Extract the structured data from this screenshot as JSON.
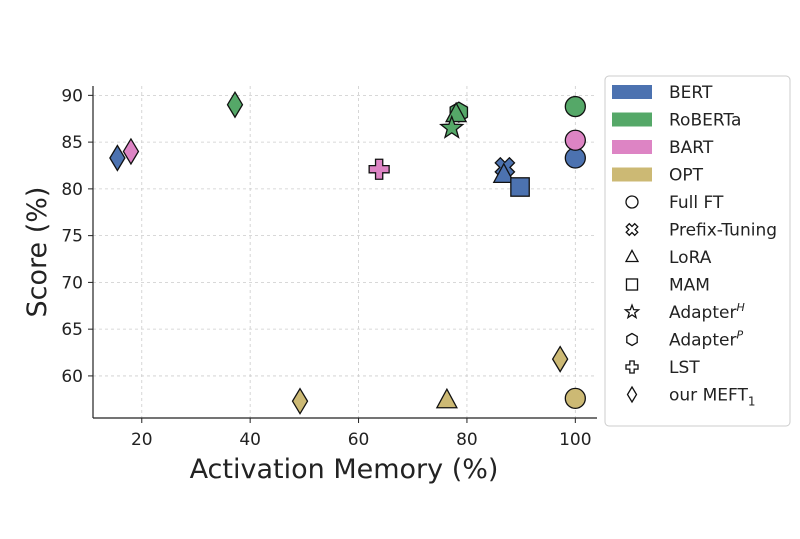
{
  "chart_data": {
    "type": "scatter",
    "xlabel": "Activation Memory (%)",
    "ylabel": "Score (%)",
    "xlim": [
      11,
      104
    ],
    "ylim": [
      55.5,
      91
    ],
    "xticks": [
      20,
      40,
      60,
      80,
      100
    ],
    "yticks": [
      60,
      65,
      70,
      75,
      80,
      85,
      90
    ],
    "grid": true,
    "legend_position": "right",
    "colors": {
      "BERT": "#4c72b0",
      "RoBERTa": "#55a868",
      "BART": "#dd84c4",
      "OPT": "#ccb974"
    },
    "model_legend": [
      "BERT",
      "RoBERTa",
      "BART",
      "OPT"
    ],
    "method_legend": [
      {
        "marker": "circle",
        "label": "Full FT"
      },
      {
        "marker": "x",
        "label": "Prefix-Tuning"
      },
      {
        "marker": "triangle",
        "label": "LoRA"
      },
      {
        "marker": "square",
        "label": "MAM"
      },
      {
        "marker": "star",
        "label": "Adapter",
        "sup": "H"
      },
      {
        "marker": "hexagon",
        "label": "Adapter",
        "sup": "P"
      },
      {
        "marker": "plus",
        "label": "LST"
      },
      {
        "marker": "diamond",
        "label": "our MEFT",
        "sub": "1"
      }
    ],
    "points": [
      {
        "model": "BERT",
        "method": "circle",
        "x": 100,
        "y": 83.3
      },
      {
        "model": "BERT",
        "method": "x",
        "x": 87,
        "y": 82.3
      },
      {
        "model": "BERT",
        "method": "triangle",
        "x": 86.8,
        "y": 81.5
      },
      {
        "model": "BERT",
        "method": "square",
        "x": 89.8,
        "y": 80.2
      },
      {
        "model": "BERT",
        "method": "diamond",
        "x": 15.5,
        "y": 83.3
      },
      {
        "model": "RoBERTa",
        "method": "circle",
        "x": 100,
        "y": 88.8
      },
      {
        "model": "RoBERTa",
        "method": "hexagon",
        "x": 78.5,
        "y": 88.2
      },
      {
        "model": "RoBERTa",
        "method": "triangle",
        "x": 78,
        "y": 88
      },
      {
        "model": "RoBERTa",
        "method": "star",
        "x": 77.2,
        "y": 86.5
      },
      {
        "model": "RoBERTa",
        "method": "diamond",
        "x": 37.2,
        "y": 89
      },
      {
        "model": "BART",
        "method": "circle",
        "x": 100,
        "y": 85.2
      },
      {
        "model": "BART",
        "method": "plus",
        "x": 63.8,
        "y": 82.1
      },
      {
        "model": "BART",
        "method": "diamond",
        "x": 18,
        "y": 84
      },
      {
        "model": "OPT",
        "method": "circle",
        "x": 100,
        "y": 57.6
      },
      {
        "model": "OPT",
        "method": "diamond",
        "x": 97.2,
        "y": 61.8
      },
      {
        "model": "OPT",
        "method": "triangle",
        "x": 76.3,
        "y": 57.4
      },
      {
        "model": "OPT",
        "method": "diamond",
        "x": 49.2,
        "y": 57.3
      }
    ]
  }
}
